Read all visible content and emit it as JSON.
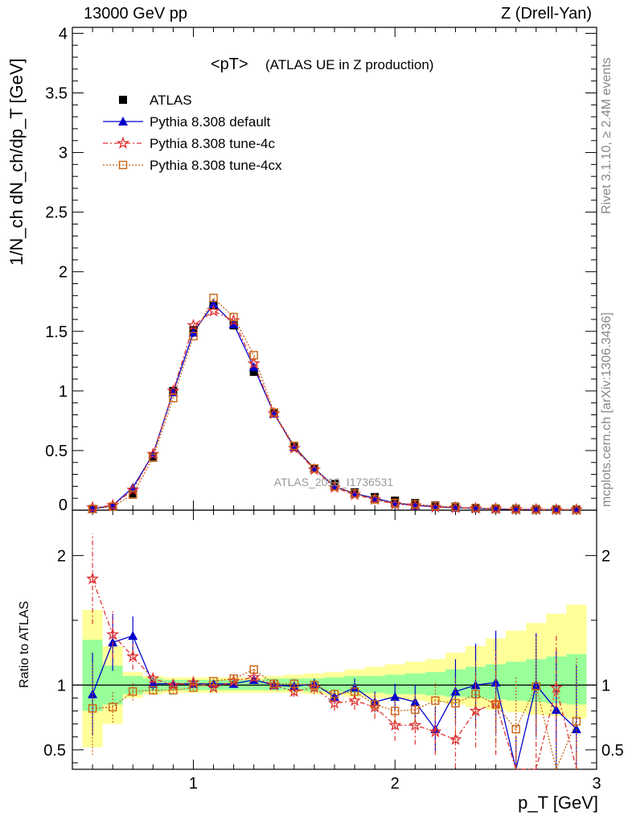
{
  "header": {
    "left": "13000 GeV pp",
    "right": "Z (Drell-Yan)"
  },
  "side_labels": {
    "rivet": "Rivet 3.1.10, ≥ 2.4M events",
    "mcplots": "mcplots.cern.ch [arXiv:1306.3436]"
  },
  "main_plot": {
    "title": "<pT>",
    "subtitle": "(ATLAS UE in Z production)",
    "ylabel": "1/N_ch dN_ch/dp_T [GeV]",
    "analysis_tag": "ATLAS_2019_I1736531",
    "legend": [
      {
        "label": "ATLAS",
        "style": "data"
      },
      {
        "label": "Pythia 8.308 default",
        "style": "default"
      },
      {
        "label": "Pythia 8.308 tune-4c",
        "style": "tune4c"
      },
      {
        "label": "Pythia 8.308 tune-4cx",
        "style": "tune4cx"
      }
    ]
  },
  "ratio_plot": {
    "ylabel": "Ratio to ATLAS"
  },
  "xlabel": "p_T [GeV]",
  "colors": {
    "default": "#0000cc",
    "tune4c": "#e03030",
    "tune4cx": "#c86414",
    "band_inner": "#99ff99",
    "band_outer": "#ffff99"
  },
  "chart_data": [
    {
      "type": "line",
      "title": "<pT> (ATLAS UE in Z production)",
      "xlabel": "p_T [GeV]",
      "ylabel": "1/N_ch dN_ch/dp_T [GeV]",
      "xlim": [
        0.4,
        3.0
      ],
      "ylim": [
        0,
        4.05
      ],
      "x_ticks": [
        "1",
        "2",
        "3"
      ],
      "y_ticks": [
        "0",
        "0.5",
        "1",
        "1.5",
        "2",
        "2.5",
        "3",
        "3.5",
        "4"
      ],
      "x": [
        0.5,
        0.6,
        0.7,
        0.8,
        0.9,
        1.0,
        1.1,
        1.2,
        1.3,
        1.4,
        1.5,
        1.6,
        1.7,
        1.8,
        1.9,
        2.0,
        2.1,
        2.2,
        2.3,
        2.4,
        2.5,
        2.6,
        2.7,
        2.8,
        2.9
      ],
      "legend_position": "top-left",
      "series": [
        {
          "name": "ATLAS",
          "style": "data",
          "values": [
            0.01,
            0.03,
            0.14,
            0.45,
            1.0,
            1.51,
            1.72,
            1.55,
            1.16,
            0.81,
            0.53,
            0.35,
            0.22,
            0.15,
            0.11,
            0.08,
            0.06,
            0.04,
            0.03,
            0.02,
            0.015,
            0.012,
            0.01,
            0.008,
            0.006
          ]
        },
        {
          "name": "Pythia 8.308 default",
          "style": "default",
          "values": [
            0.01,
            0.04,
            0.19,
            0.47,
            0.99,
            1.49,
            1.73,
            1.56,
            1.2,
            0.81,
            0.53,
            0.35,
            0.2,
            0.14,
            0.1,
            0.06,
            0.04,
            0.03,
            0.02,
            0.015,
            0.01,
            0.006,
            0.005,
            0.004,
            0.003
          ]
        },
        {
          "name": "Pythia 8.308 tune-4c",
          "style": "tune4c",
          "values": [
            0.02,
            0.04,
            0.17,
            0.47,
            1.0,
            1.55,
            1.67,
            1.59,
            1.23,
            0.81,
            0.52,
            0.34,
            0.19,
            0.13,
            0.09,
            0.05,
            0.04,
            0.025,
            0.02,
            0.015,
            0.012,
            0.008,
            0.006,
            0.005,
            0.004
          ]
        },
        {
          "name": "Pythia 8.308 tune-4cx",
          "style": "tune4cx",
          "values": [
            0.01,
            0.03,
            0.13,
            0.44,
            0.94,
            1.46,
            1.78,
            1.62,
            1.3,
            0.82,
            0.54,
            0.35,
            0.2,
            0.14,
            0.09,
            0.06,
            0.05,
            0.035,
            0.025,
            0.018,
            0.013,
            0.008,
            0.007,
            0.005,
            0.004
          ]
        }
      ]
    },
    {
      "type": "line",
      "ylabel": "Ratio to ATLAS",
      "xlabel": "p_T [GeV]",
      "xlim": [
        0.4,
        3.0
      ],
      "ylim": [
        0.35,
        2.35
      ],
      "x_ticks": [
        "1",
        "2",
        "3"
      ],
      "y_ticks": [
        "0.5",
        "1",
        "2"
      ],
      "x": [
        0.5,
        0.6,
        0.7,
        0.8,
        0.9,
        1.0,
        1.1,
        1.2,
        1.3,
        1.4,
        1.5,
        1.6,
        1.7,
        1.8,
        1.9,
        2.0,
        2.1,
        2.2,
        2.3,
        2.4,
        2.5,
        2.6,
        2.7,
        2.8,
        2.9
      ],
      "band_inner": {
        "low": [
          0.8,
          0.85,
          0.93,
          0.95,
          0.96,
          0.96,
          0.96,
          0.96,
          0.96,
          0.96,
          0.96,
          0.95,
          0.95,
          0.94,
          0.94,
          0.93,
          0.93,
          0.92,
          0.91,
          0.9,
          0.89,
          0.88,
          0.87,
          0.86,
          0.85
        ],
        "high": [
          1.35,
          1.15,
          1.07,
          1.05,
          1.04,
          1.04,
          1.04,
          1.04,
          1.04,
          1.05,
          1.05,
          1.05,
          1.06,
          1.07,
          1.07,
          1.08,
          1.09,
          1.1,
          1.12,
          1.14,
          1.16,
          1.18,
          1.2,
          1.22,
          1.24
        ]
      },
      "band_outer": {
        "low": [
          0.52,
          0.7,
          0.9,
          0.93,
          0.94,
          0.94,
          0.94,
          0.94,
          0.94,
          0.94,
          0.94,
          0.93,
          0.92,
          0.91,
          0.9,
          0.89,
          0.88,
          0.87,
          0.85,
          0.83,
          0.81,
          0.79,
          0.77,
          0.76,
          0.74
        ],
        "high": [
          1.58,
          1.3,
          1.1,
          1.07,
          1.06,
          1.06,
          1.06,
          1.06,
          1.06,
          1.07,
          1.08,
          1.09,
          1.1,
          1.12,
          1.14,
          1.16,
          1.18,
          1.2,
          1.25,
          1.3,
          1.36,
          1.42,
          1.48,
          1.55,
          1.62
        ]
      },
      "series": [
        {
          "name": "Pythia 8.308 default",
          "style": "default",
          "values": [
            0.93,
            1.33,
            1.38,
            1.01,
            1.01,
            1.01,
            1.01,
            1.01,
            1.04,
            1.0,
            0.99,
            1.01,
            0.91,
            0.98,
            0.87,
            0.91,
            0.87,
            0.66,
            0.95,
            1.0,
            1.02,
            0.1,
            1.0,
            0.81,
            0.66
          ],
          "err": [
            0.32,
            0.22,
            0.15,
            0.05,
            0.03,
            0.02,
            0.02,
            0.02,
            0.03,
            0.03,
            0.04,
            0.04,
            0.05,
            0.07,
            0.08,
            0.1,
            0.13,
            0.17,
            0.25,
            0.32,
            0.4,
            0.5,
            0.4,
            0.45,
            0.5
          ]
        },
        {
          "name": "Pythia 8.308 tune-4c",
          "style": "tune4c",
          "values": [
            1.82,
            1.39,
            1.22,
            1.05,
            1.0,
            1.02,
            0.98,
            1.03,
            1.06,
            1.0,
            0.95,
            0.98,
            0.86,
            0.88,
            0.83,
            0.69,
            0.69,
            0.64,
            0.58,
            0.8,
            0.86,
            0.1,
            0.3,
            0.98,
            0.1
          ],
          "err": [
            0.35,
            0.18,
            0.1,
            0.04,
            0.03,
            0.02,
            0.02,
            0.02,
            0.03,
            0.03,
            0.04,
            0.05,
            0.06,
            0.07,
            0.09,
            0.12,
            0.15,
            0.18,
            0.22,
            0.28,
            0.4,
            0.5,
            0.45,
            0.42,
            0.5
          ]
        },
        {
          "name": "Pythia 8.308 tune-4cx",
          "style": "tune4cx",
          "values": [
            0.82,
            0.83,
            0.95,
            0.96,
            0.96,
            0.98,
            1.03,
            1.05,
            1.12,
            1.01,
            1.01,
            1.0,
            0.93,
            0.95,
            0.85,
            0.8,
            0.81,
            0.88,
            0.86,
            0.93,
            0.85,
            0.66,
            0.99,
            0.1,
            0.72
          ],
          "err": [
            0.36,
            0.12,
            0.07,
            0.03,
            0.03,
            0.02,
            0.02,
            0.02,
            0.03,
            0.03,
            0.04,
            0.04,
            0.05,
            0.06,
            0.08,
            0.1,
            0.12,
            0.15,
            0.2,
            0.26,
            0.32,
            0.4,
            0.38,
            0.45,
            0.5
          ]
        }
      ]
    }
  ]
}
